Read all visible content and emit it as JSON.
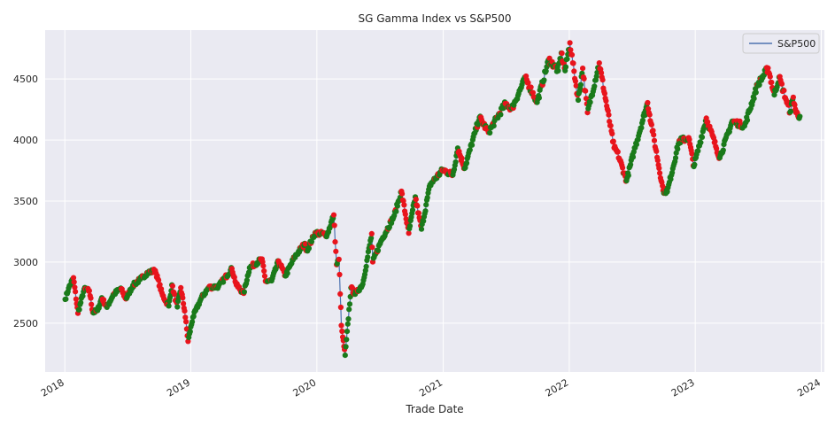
{
  "chart_data": {
    "type": "line",
    "title": "SG Gamma Index vs S&P500",
    "xlabel": "Trade Date",
    "ylabel": "",
    "x_ticks": [
      "2018",
      "2019",
      "2020",
      "2021",
      "2022",
      "2023",
      "2024"
    ],
    "y_ticks": [
      2500,
      3000,
      3500,
      4000,
      4500
    ],
    "xlim": [
      "2017-11-05",
      "2024-01-10"
    ],
    "ylim": [
      2100,
      4900
    ],
    "grid": true,
    "legend_position": "top-right",
    "series": [
      {
        "name": "S&P500",
        "color": "#4c72b0",
        "marker_colors": {
          "positive": "#1a7a1a",
          "negative": "#e8141c"
        },
        "points": [
          [
            "2018-01-02",
            2695
          ],
          [
            "2018-01-12",
            2786
          ],
          [
            "2018-01-26",
            2872
          ],
          [
            "2018-02-08",
            2581
          ],
          [
            "2018-02-26",
            2779
          ],
          [
            "2018-03-13",
            2765
          ],
          [
            "2018-03-23",
            2588
          ],
          [
            "2018-04-06",
            2604
          ],
          [
            "2018-04-18",
            2708
          ],
          [
            "2018-05-03",
            2630
          ],
          [
            "2018-05-21",
            2733
          ],
          [
            "2018-06-12",
            2786
          ],
          [
            "2018-06-27",
            2699
          ],
          [
            "2018-07-17",
            2809
          ],
          [
            "2018-08-07",
            2858
          ],
          [
            "2018-08-29",
            2914
          ],
          [
            "2018-09-20",
            2930
          ],
          [
            "2018-10-11",
            2728
          ],
          [
            "2018-10-29",
            2641
          ],
          [
            "2018-11-07",
            2813
          ],
          [
            "2018-11-23",
            2633
          ],
          [
            "2018-12-03",
            2790
          ],
          [
            "2018-12-14",
            2600
          ],
          [
            "2018-12-24",
            2351
          ],
          [
            "2019-01-07",
            2549
          ],
          [
            "2019-01-31",
            2704
          ],
          [
            "2019-02-22",
            2793
          ],
          [
            "2019-03-22",
            2801
          ],
          [
            "2019-04-30",
            2946
          ],
          [
            "2019-05-13",
            2812
          ],
          [
            "2019-06-03",
            2744
          ],
          [
            "2019-06-20",
            2954
          ],
          [
            "2019-07-26",
            3025
          ],
          [
            "2019-08-05",
            2844
          ],
          [
            "2019-08-23",
            2847
          ],
          [
            "2019-09-12",
            3009
          ],
          [
            "2019-10-02",
            2887
          ],
          [
            "2019-10-28",
            3039
          ],
          [
            "2019-11-27",
            3153
          ],
          [
            "2019-12-03",
            3093
          ],
          [
            "2019-12-27",
            3240
          ],
          [
            "2020-01-31",
            3225
          ],
          [
            "2020-02-19",
            3386
          ],
          [
            "2020-02-27",
            2979
          ],
          [
            "2020-03-05",
            3023
          ],
          [
            "2020-03-12",
            2481
          ],
          [
            "2020-03-16",
            2386
          ],
          [
            "2020-03-23",
            2237
          ],
          [
            "2020-04-09",
            2790
          ],
          [
            "2020-04-21",
            2737
          ],
          [
            "2020-05-13",
            2820
          ],
          [
            "2020-06-08",
            3232
          ],
          [
            "2020-06-11",
            3002
          ],
          [
            "2020-07-06",
            3180
          ],
          [
            "2020-08-12",
            3380
          ],
          [
            "2020-09-02",
            3580
          ],
          [
            "2020-09-23",
            3237
          ],
          [
            "2020-10-12",
            3534
          ],
          [
            "2020-10-30",
            3270
          ],
          [
            "2020-11-24",
            3635
          ],
          [
            "2020-12-31",
            3756
          ],
          [
            "2021-01-29",
            3714
          ],
          [
            "2021-02-12",
            3934
          ],
          [
            "2021-03-04",
            3768
          ],
          [
            "2021-04-16",
            4185
          ],
          [
            "2021-05-12",
            4063
          ],
          [
            "2021-06-30",
            4298
          ],
          [
            "2021-07-19",
            4258
          ],
          [
            "2021-08-27",
            4509
          ],
          [
            "2021-09-30",
            4308
          ],
          [
            "2021-11-03",
            4660
          ],
          [
            "2021-11-30",
            4567
          ],
          [
            "2021-12-09",
            4713
          ],
          [
            "2021-12-20",
            4568
          ],
          [
            "2022-01-03",
            4796
          ],
          [
            "2022-01-27",
            4327
          ],
          [
            "2022-02-09",
            4587
          ],
          [
            "2022-02-23",
            4225
          ],
          [
            "2022-03-29",
            4631
          ],
          [
            "2022-05-11",
            3935
          ],
          [
            "2022-05-20",
            3901
          ],
          [
            "2022-06-16",
            3667
          ],
          [
            "2022-07-07",
            3903
          ],
          [
            "2022-08-16",
            4305
          ],
          [
            "2022-09-30",
            3586
          ],
          [
            "2022-10-12",
            3577
          ],
          [
            "2022-11-15",
            3991
          ],
          [
            "2022-12-13",
            4019
          ],
          [
            "2022-12-28",
            3783
          ],
          [
            "2023-02-02",
            4179
          ],
          [
            "2023-03-13",
            3855
          ],
          [
            "2023-04-18",
            4154
          ],
          [
            "2023-05-24",
            4115
          ],
          [
            "2023-06-30",
            4450
          ],
          [
            "2023-07-31",
            4589
          ],
          [
            "2023-08-18",
            4370
          ],
          [
            "2023-09-01",
            4515
          ],
          [
            "2023-09-21",
            4330
          ],
          [
            "2023-10-03",
            4229
          ],
          [
            "2023-10-12",
            4350
          ],
          [
            "2023-10-20",
            4224
          ],
          [
            "2023-10-31",
            4193
          ]
        ]
      }
    ]
  }
}
